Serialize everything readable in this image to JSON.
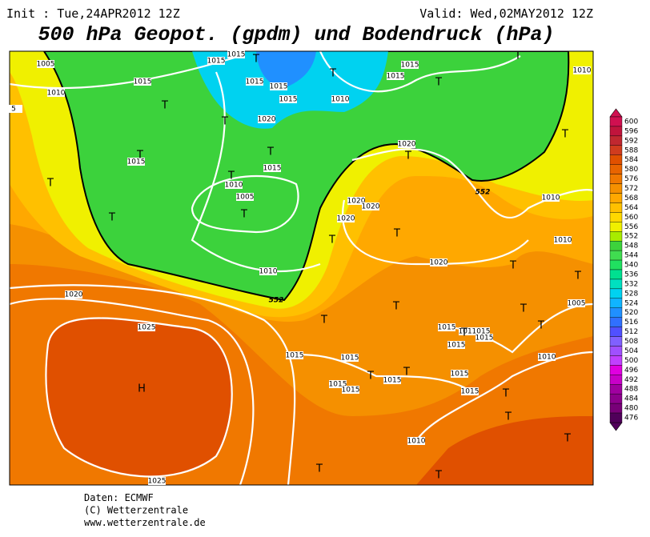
{
  "header": {
    "init": "Init : Tue,24APR2012 12Z",
    "valid": "Valid: Wed,02MAY2012 12Z",
    "title": "500 hPa Geopot. (gpdm) und Bodendruck (hPa)"
  },
  "colorbar": {
    "levels": [
      600,
      596,
      592,
      588,
      584,
      580,
      576,
      572,
      568,
      564,
      560,
      556,
      552,
      548,
      544,
      540,
      536,
      532,
      528,
      524,
      520,
      516,
      512,
      508,
      504,
      500,
      496,
      492,
      488,
      484,
      480,
      476
    ],
    "colors": [
      "#d01050",
      "#c0143c",
      "#c02830",
      "#d03c1e",
      "#e05000",
      "#e86400",
      "#f07800",
      "#f59000",
      "#ffa800",
      "#ffc000",
      "#ffd800",
      "#f0f000",
      "#a8ec00",
      "#3cd23c",
      "#40dc50",
      "#20e060",
      "#00e090",
      "#00e0c0",
      "#00d2f0",
      "#10b4ff",
      "#2090ff",
      "#3070ff",
      "#5050ff",
      "#8060ff",
      "#a050ff",
      "#c040ff",
      "#e000e0",
      "#c800c8",
      "#a000a0",
      "#8c008c",
      "#780078",
      "#50005a"
    ]
  },
  "contour_labels": [
    "552",
    "552"
  ],
  "isobar_labels": [
    "1005",
    "1015",
    "1010",
    "1015",
    "1015",
    "1015",
    "1015",
    "1015",
    "1010",
    "1015",
    "1015",
    "1010",
    "1020",
    "1015",
    "1015",
    "1010",
    "1005",
    "1010",
    "1020",
    "1020",
    "1020",
    "1020",
    "1010",
    "1010",
    "1020",
    "1020",
    "1025",
    "1005",
    "1015",
    "1015",
    "1015",
    "1015",
    "1015",
    "1015",
    "1015",
    "1010",
    "1015",
    "1015",
    "1015",
    "1015",
    "1015",
    "1010",
    "1025",
    "5"
  ],
  "centers": [
    "T",
    "T",
    "T",
    "T",
    "T",
    "T",
    "T",
    "T",
    "T",
    "T",
    "T",
    "T",
    "T",
    "T",
    "T",
    "T",
    "T",
    "T",
    "T",
    "T",
    "T",
    "T",
    "T",
    "T",
    "T",
    "T",
    "T",
    "T",
    "T",
    "T",
    "H"
  ],
  "footer": [
    "Daten: ECMWF",
    "(C) Wetterzentrale",
    "www.wetterzentrale.de"
  ]
}
